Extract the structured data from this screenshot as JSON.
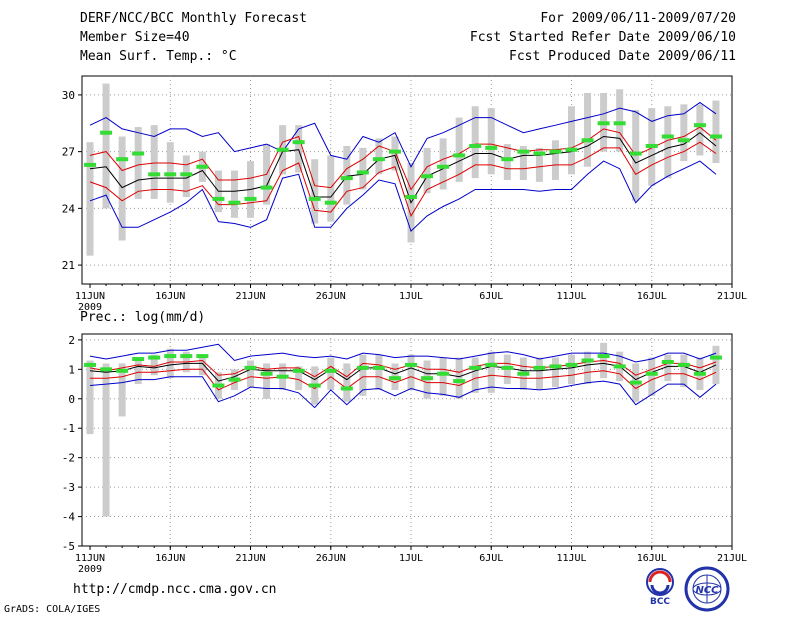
{
  "header": {
    "left": [
      "DERF/NCC/BCC Monthly Forecast",
      "Member Size=40",
      "Mean Surf. Temp.: °C"
    ],
    "right": [
      "For 2009/06/11-2009/07/20",
      "Fcst Started Refer Date 2009/06/10",
      "Fcst Produced Date 2009/06/11"
    ]
  },
  "footer": {
    "url": "http://cmdp.ncc.cma.gov.cn",
    "credit": "GrADS: COLA/IGES"
  },
  "logos": {
    "bcc_label": "BCC",
    "ncc_label": "NCC"
  },
  "colors": {
    "envelope": "#0000cc",
    "spread": "#dd0000",
    "mean": "#000000",
    "box": "#cccccc",
    "median": "#33dd33",
    "grid": "#999999"
  },
  "chart_data": [
    {
      "type": "line",
      "title": "Mean Surf. Temp.: °C",
      "xlabel": "",
      "ylabel": "",
      "xlim": [
        1,
        40
      ],
      "ylim": [
        20,
        31
      ],
      "yticks": [
        21,
        24,
        27,
        30
      ],
      "xticks": [
        {
          "day": 1,
          "label": "11JUN",
          "sub": "2009"
        },
        {
          "day": 6,
          "label": "16JUN"
        },
        {
          "day": 11,
          "label": "21JUN"
        },
        {
          "day": 16,
          "label": "26JUN"
        },
        {
          "day": 21,
          "label": "1JUL"
        },
        {
          "day": 26,
          "label": "6JUL"
        },
        {
          "day": 31,
          "label": "11JUL"
        },
        {
          "day": 36,
          "label": "16JUL"
        },
        {
          "day": 41,
          "label": "21JUL"
        }
      ],
      "series": [
        {
          "name": "max",
          "color": "#0000cc",
          "values": [
            28.4,
            28.8,
            28.2,
            28.0,
            27.8,
            28.2,
            28.2,
            27.8,
            28.0,
            27.0,
            27.2,
            27.4,
            27.0,
            28.2,
            28.5,
            26.8,
            26.6,
            27.8,
            27.5,
            28.0,
            26.2,
            27.7,
            28.0,
            28.4,
            28.8,
            28.8,
            28.4,
            28.0,
            28.2,
            28.4,
            28.6,
            28.8,
            29.0,
            29.3,
            29.1,
            28.6,
            28.9,
            29.0,
            29.6,
            29.0
          ]
        },
        {
          "name": "upper",
          "color": "#dd0000",
          "values": [
            26.8,
            27.0,
            26.0,
            26.3,
            26.4,
            26.4,
            26.3,
            26.6,
            25.5,
            25.5,
            25.6,
            25.8,
            27.5,
            27.8,
            25.2,
            25.1,
            26.1,
            26.6,
            27.3,
            27.0,
            25.0,
            26.2,
            26.6,
            26.9,
            27.4,
            27.4,
            27.2,
            27.0,
            27.1,
            27.1,
            27.2,
            27.6,
            28.2,
            28.0,
            26.8,
            27.2,
            27.6,
            27.8,
            28.3,
            27.6
          ]
        },
        {
          "name": "mean",
          "color": "#000000",
          "values": [
            26.1,
            26.2,
            25.1,
            25.5,
            25.6,
            25.6,
            25.6,
            26.0,
            24.9,
            24.9,
            25.0,
            25.2,
            27.0,
            27.1,
            24.6,
            24.6,
            25.7,
            25.8,
            26.6,
            26.8,
            24.3,
            25.7,
            26.1,
            26.5,
            26.9,
            26.9,
            26.6,
            26.8,
            26.8,
            26.9,
            27.0,
            27.3,
            27.8,
            27.7,
            26.4,
            26.8,
            27.2,
            27.4,
            28.0,
            27.3
          ]
        },
        {
          "name": "lower",
          "color": "#dd0000",
          "values": [
            25.4,
            25.1,
            24.4,
            24.9,
            25.0,
            25.0,
            24.9,
            25.2,
            24.2,
            24.2,
            24.3,
            24.4,
            26.0,
            26.4,
            23.9,
            23.8,
            24.9,
            25.1,
            25.9,
            26.2,
            23.6,
            25.0,
            25.4,
            25.8,
            26.3,
            26.3,
            26.1,
            26.1,
            26.2,
            26.3,
            26.3,
            26.7,
            27.2,
            27.2,
            25.8,
            26.3,
            26.7,
            27.0,
            27.5,
            26.9
          ]
        },
        {
          "name": "min",
          "color": "#0000cc",
          "values": [
            24.4,
            24.7,
            23.0,
            23.0,
            23.4,
            23.8,
            24.3,
            25.0,
            23.3,
            23.2,
            23.0,
            23.4,
            25.6,
            25.8,
            23.0,
            23.0,
            24.0,
            24.7,
            25.5,
            25.3,
            22.8,
            23.6,
            24.1,
            24.5,
            25.0,
            25.0,
            25.0,
            25.0,
            24.9,
            25.0,
            25.0,
            25.8,
            26.5,
            26.1,
            24.3,
            25.2,
            25.7,
            26.1,
            26.5,
            25.8
          ]
        }
      ],
      "boxes": {
        "low": [
          21.5,
          24.0,
          22.3,
          24.5,
          24.5,
          24.3,
          24.6,
          25.4,
          23.8,
          23.5,
          23.5,
          24.2,
          25.8,
          25.9,
          23.2,
          23.3,
          24.2,
          25.0,
          25.8,
          26.0,
          22.2,
          24.8,
          25.0,
          25.4,
          25.6,
          25.8,
          25.5,
          25.5,
          25.4,
          25.5,
          25.8,
          26.2,
          27.0,
          27.0,
          24.4,
          25.2,
          25.6,
          26.5,
          26.8,
          26.4
        ],
        "high": [
          27.5,
          30.6,
          27.8,
          28.3,
          28.4,
          27.5,
          26.8,
          27.0,
          26.0,
          26.0,
          26.5,
          27.4,
          28.4,
          28.4,
          26.6,
          26.8,
          27.3,
          27.2,
          27.7,
          27.8,
          26.4,
          27.2,
          27.7,
          28.8,
          29.4,
          29.3,
          27.4,
          27.3,
          27.2,
          27.6,
          29.4,
          30.1,
          30.1,
          30.3,
          29.2,
          29.3,
          29.4,
          29.5,
          29.5,
          29.7
        ],
        "median": [
          26.3,
          28.0,
          26.6,
          26.9,
          25.8,
          25.8,
          25.8,
          26.2,
          24.5,
          24.3,
          24.5,
          25.1,
          27.1,
          27.5,
          24.5,
          24.3,
          25.6,
          25.9,
          26.6,
          27.0,
          24.6,
          25.7,
          26.2,
          26.8,
          27.3,
          27.2,
          26.6,
          27.0,
          26.9,
          27.0,
          27.1,
          27.6,
          28.5,
          28.5,
          26.9,
          27.3,
          27.8,
          27.6,
          28.4,
          27.8
        ]
      }
    },
    {
      "type": "line",
      "title": "Prec.: log(mm/d)",
      "xlabel": "",
      "ylabel": "",
      "xlim": [
        1,
        40
      ],
      "ylim": [
        -5,
        2.2
      ],
      "yticks": [
        -5,
        -4,
        -3,
        -2,
        -1,
        0,
        1,
        2
      ],
      "xticks": [
        {
          "day": 1,
          "label": "11JUN",
          "sub": "2009"
        },
        {
          "day": 6,
          "label": "16JUN"
        },
        {
          "day": 11,
          "label": "21JUN"
        },
        {
          "day": 16,
          "label": "26JUN"
        },
        {
          "day": 21,
          "label": "1JUL"
        },
        {
          "day": 26,
          "label": "6JUL"
        },
        {
          "day": 31,
          "label": "11JUL"
        },
        {
          "day": 36,
          "label": "16JUL"
        },
        {
          "day": 41,
          "label": "21JUL"
        }
      ],
      "series": [
        {
          "name": "max",
          "color": "#0000cc",
          "values": [
            1.45,
            1.35,
            1.45,
            1.55,
            1.55,
            1.65,
            1.65,
            1.75,
            1.85,
            1.3,
            1.45,
            1.5,
            1.55,
            1.45,
            1.4,
            1.45,
            1.35,
            1.55,
            1.5,
            1.4,
            1.45,
            1.45,
            1.4,
            1.35,
            1.45,
            1.55,
            1.6,
            1.5,
            1.35,
            1.45,
            1.55,
            1.55,
            1.55,
            1.45,
            1.25,
            1.35,
            1.55,
            1.55,
            1.35,
            1.55
          ]
        },
        {
          "name": "upper",
          "color": "#dd0000",
          "values": [
            1.05,
            0.95,
            1.05,
            1.15,
            1.1,
            1.25,
            1.25,
            1.3,
            0.8,
            0.85,
            1.1,
            1.0,
            1.05,
            1.05,
            0.75,
            1.1,
            0.75,
            1.2,
            1.15,
            1.0,
            1.15,
            1.0,
            1.0,
            0.9,
            1.1,
            1.2,
            1.2,
            1.1,
            1.05,
            1.1,
            1.15,
            1.25,
            1.3,
            1.2,
            0.8,
            1.0,
            1.2,
            1.2,
            1.05,
            1.25
          ]
        },
        {
          "name": "mean",
          "color": "#000000",
          "values": [
            0.95,
            0.9,
            0.95,
            1.1,
            1.05,
            1.15,
            1.2,
            1.2,
            0.6,
            0.75,
            1.0,
            0.95,
            0.95,
            0.95,
            0.65,
            1.0,
            0.65,
            1.05,
            1.05,
            0.85,
            1.05,
            0.85,
            0.85,
            0.75,
            0.95,
            1.1,
            1.05,
            0.95,
            0.95,
            1.0,
            1.05,
            1.15,
            1.2,
            1.1,
            0.65,
            0.9,
            1.1,
            1.1,
            0.9,
            1.15
          ]
        },
        {
          "name": "lower",
          "color": "#dd0000",
          "values": [
            0.7,
            0.7,
            0.75,
            0.9,
            0.9,
            0.95,
            1.0,
            1.0,
            0.3,
            0.55,
            0.75,
            0.7,
            0.75,
            0.65,
            0.35,
            0.75,
            0.35,
            0.75,
            0.75,
            0.55,
            0.75,
            0.55,
            0.55,
            0.45,
            0.7,
            0.8,
            0.75,
            0.7,
            0.7,
            0.75,
            0.8,
            0.9,
            0.95,
            0.85,
            0.35,
            0.65,
            0.85,
            0.85,
            0.65,
            0.9
          ]
        },
        {
          "name": "min",
          "color": "#0000cc",
          "values": [
            0.45,
            0.5,
            0.55,
            0.65,
            0.65,
            0.75,
            0.75,
            0.75,
            -0.1,
            0.1,
            0.4,
            0.35,
            0.35,
            0.2,
            -0.3,
            0.3,
            -0.2,
            0.3,
            0.35,
            0.1,
            0.35,
            0.2,
            0.15,
            0.05,
            0.3,
            0.4,
            0.35,
            0.35,
            0.3,
            0.35,
            0.45,
            0.55,
            0.6,
            0.5,
            -0.2,
            0.15,
            0.5,
            0.5,
            0.05,
            0.5
          ]
        }
      ],
      "boxes": {
        "low": [
          -1.2,
          -4.0,
          -0.6,
          0.5,
          0.8,
          0.7,
          0.9,
          0.8,
          0.0,
          0.3,
          0.4,
          0.0,
          0.3,
          0.3,
          -0.2,
          0.3,
          -0.1,
          0.1,
          0.3,
          0.3,
          0.3,
          0.0,
          0.1,
          0.0,
          0.2,
          0.2,
          0.5,
          0.3,
          0.3,
          0.4,
          0.5,
          0.5,
          0.7,
          0.6,
          -0.1,
          0.1,
          0.6,
          0.4,
          0.3,
          0.5
        ],
        "high": [
          1.3,
          1.2,
          1.2,
          1.3,
          1.5,
          1.7,
          1.6,
          1.5,
          0.9,
          1.0,
          1.3,
          1.2,
          1.2,
          1.1,
          1.1,
          1.4,
          1.2,
          1.5,
          1.5,
          1.2,
          1.5,
          1.3,
          1.4,
          1.4,
          1.4,
          1.6,
          1.5,
          1.4,
          1.4,
          1.4,
          1.5,
          1.6,
          1.9,
          1.6,
          1.2,
          1.4,
          1.5,
          1.5,
          1.4,
          1.8
        ],
        "median": [
          1.15,
          1.0,
          0.95,
          1.35,
          1.4,
          1.45,
          1.45,
          1.45,
          0.45,
          0.65,
          1.05,
          0.85,
          0.75,
          0.95,
          0.45,
          0.95,
          0.35,
          1.05,
          1.05,
          0.7,
          1.15,
          0.7,
          0.85,
          0.6,
          1.05,
          1.15,
          1.05,
          0.85,
          1.05,
          1.1,
          1.15,
          1.3,
          1.45,
          1.1,
          0.55,
          0.85,
          1.25,
          1.15,
          0.85,
          1.4
        ]
      }
    }
  ]
}
